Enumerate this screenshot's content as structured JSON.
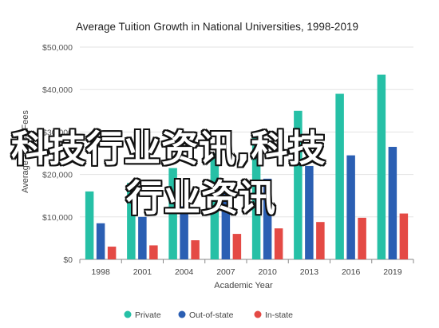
{
  "chart_data": {
    "type": "bar",
    "title": "Average Tuition Growth in National Universities, 1998-2019",
    "xlabel": "Academic Year",
    "ylabel": "Average Tuition Fees",
    "ylim": [
      0,
      50000
    ],
    "yticks": [
      "$0",
      "$10,000",
      "$20,000",
      "$30,000",
      "$40,000",
      "$50,000"
    ],
    "ytick_values": [
      0,
      10000,
      20000,
      30000,
      40000,
      50000
    ],
    "grid": true,
    "legend_position": "bottom",
    "categories": [
      "1998",
      "2001",
      "2004",
      "2007",
      "2010",
      "2013",
      "2016",
      "2019"
    ],
    "series": [
      {
        "name": "Private",
        "color": "#26c0a6",
        "values": [
          16000,
          18000,
          21500,
          25000,
          29000,
          35000,
          39000,
          43500
        ]
      },
      {
        "name": "Out-of-state",
        "color": "#2b5fb3",
        "values": [
          8500,
          10000,
          12500,
          16000,
          19000,
          22000,
          24500,
          26500
        ]
      },
      {
        "name": "In-state",
        "color": "#e44a45",
        "values": [
          3000,
          3300,
          4500,
          6000,
          7300,
          8800,
          9800,
          10800
        ]
      }
    ]
  },
  "watermark": {
    "line1": "科技行业资讯,科技",
    "line2": "行业资讯"
  }
}
